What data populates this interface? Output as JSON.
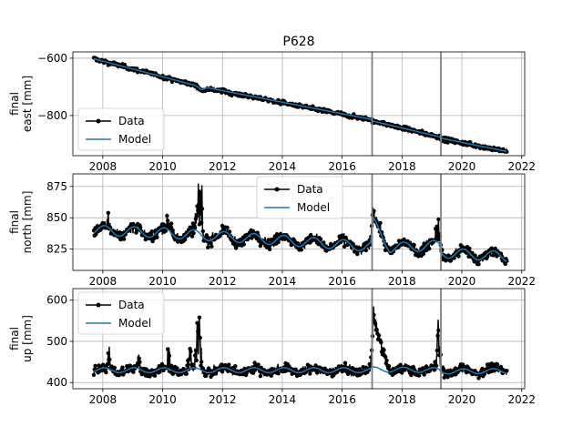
{
  "figure": {
    "title": "P628"
  },
  "legend": {
    "data_label": "Data",
    "model_label": "Model"
  },
  "colors": {
    "data": "#000000",
    "model": "#1f77b4",
    "event_line": "#808080",
    "grid": "#b0b0b0"
  },
  "chart_data": [
    {
      "type": "line",
      "ylabel": [
        "final",
        "east [mm]"
      ],
      "xlim": [
        2007.0,
        2022.1
      ],
      "ylim": [
        -940,
        -578
      ],
      "xticks": [
        2008,
        2010,
        2012,
        2014,
        2016,
        2018,
        2020,
        2022
      ],
      "yticks": [
        -600,
        -800
      ],
      "ytick_labels": [
        "−600",
        "−800"
      ],
      "show_xtick_labels": true,
      "grid": true,
      "legend_position": "lower-left",
      "event_lines": [
        2017.0,
        2019.3
      ],
      "series": [
        {
          "name": "Data",
          "trend": {
            "x": [
              2007.7,
              2011.1,
              2011.3,
              2011.5,
              2016.95,
              2017.05,
              2019.25,
              2019.35,
              2021.5
            ],
            "y": [
              -602,
              -695,
              -712,
              -705,
              -815,
              -820,
              -875,
              -882,
              -925
            ]
          },
          "noise": 5
        },
        {
          "name": "Model",
          "x": [
            2007.7,
            2011.1,
            2011.3,
            2011.5,
            2016.95,
            2017.05,
            2019.25,
            2019.35,
            2021.5
          ],
          "y": [
            -602,
            -695,
            -710,
            -703,
            -813,
            -820,
            -874,
            -880,
            -925
          ]
        }
      ]
    },
    {
      "type": "line",
      "ylabel": [
        "final",
        "north [mm]"
      ],
      "xlim": [
        2007.0,
        2022.1
      ],
      "ylim": [
        808,
        885
      ],
      "xticks": [
        2008,
        2010,
        2012,
        2014,
        2016,
        2018,
        2020,
        2022
      ],
      "yticks": [
        825,
        850,
        875
      ],
      "ytick_labels": [
        "825",
        "850",
        "875"
      ],
      "show_xtick_labels": true,
      "grid": true,
      "legend_position": "upper-center",
      "event_lines": [
        2017.0,
        2019.3
      ],
      "series": [
        {
          "name": "Data",
          "trend": {
            "x": [
              2007.7,
              2010.0,
              2012.0,
              2014.0,
              2016.95,
              2017.05,
              2017.6,
              2019.25,
              2019.35,
              2021.5
            ],
            "y": [
              840,
              838,
              835,
              832,
              827,
              848,
              826,
              828,
              822,
              819
            ]
          },
          "noise": 3,
          "seasonal": 4,
          "bursts": [
            {
              "center": 2008.2,
              "width": 0.08,
              "peak": 852
            },
            {
              "center": 2009.2,
              "width": 0.08,
              "peak": 848
            },
            {
              "center": 2010.2,
              "width": 0.1,
              "peak": 853
            },
            {
              "center": 2010.3,
              "width": 0.08,
              "peak": 850
            },
            {
              "center": 2011.2,
              "width": 0.15,
              "peak": 877
            },
            {
              "center": 2011.3,
              "width": 0.08,
              "peak": 870
            },
            {
              "center": 2017.03,
              "width": 0.05,
              "peak": 863
            },
            {
              "center": 2019.2,
              "width": 0.12,
              "peak": 857
            }
          ]
        },
        {
          "name": "Model",
          "x": [
            2007.7,
            2010.0,
            2012.0,
            2014.0,
            2016.95,
            2017.05,
            2017.6,
            2019.25,
            2019.35,
            2021.5
          ],
          "y": [
            840,
            838,
            835,
            832,
            827,
            846,
            826,
            828,
            822,
            819
          ],
          "seasonal": 4
        }
      ]
    },
    {
      "type": "line",
      "ylabel": [
        "final",
        "up [mm]"
      ],
      "xlim": [
        2007.0,
        2022.1
      ],
      "ylim": [
        385,
        628
      ],
      "xticks": [
        2008,
        2010,
        2012,
        2014,
        2016,
        2018,
        2020,
        2022
      ],
      "yticks": [
        400,
        500,
        600
      ],
      "ytick_labels": [
        "400",
        "500",
        "600"
      ],
      "show_xtick_labels": true,
      "grid": true,
      "legend_position": "upper-left",
      "event_lines": [
        2017.0,
        2019.3
      ],
      "series": [
        {
          "name": "Data",
          "trend": {
            "x": [
              2007.7,
              2016.95,
              2017.05,
              2017.6,
              2019.25,
              2019.35,
              2021.5
            ],
            "y": [
              430,
              430,
              545,
              430,
              430,
              428,
              430
            ]
          },
          "noise": 8,
          "seasonal": 6,
          "bursts": [
            {
              "center": 2008.2,
              "width": 0.1,
              "peak": 480
            },
            {
              "center": 2009.2,
              "width": 0.1,
              "peak": 465
            },
            {
              "center": 2010.2,
              "width": 0.1,
              "peak": 500
            },
            {
              "center": 2010.9,
              "width": 0.1,
              "peak": 490
            },
            {
              "center": 2011.2,
              "width": 0.15,
              "peak": 605
            },
            {
              "center": 2017.03,
              "width": 0.05,
              "peak": 575
            },
            {
              "center": 2019.2,
              "width": 0.12,
              "peak": 565
            }
          ]
        },
        {
          "name": "Model",
          "x": [
            2007.7,
            2016.95,
            2017.05,
            2019.25,
            2019.35,
            2021.5
          ],
          "y": [
            430,
            430,
            432,
            430,
            427,
            428
          ],
          "seasonal": 6
        }
      ]
    }
  ]
}
